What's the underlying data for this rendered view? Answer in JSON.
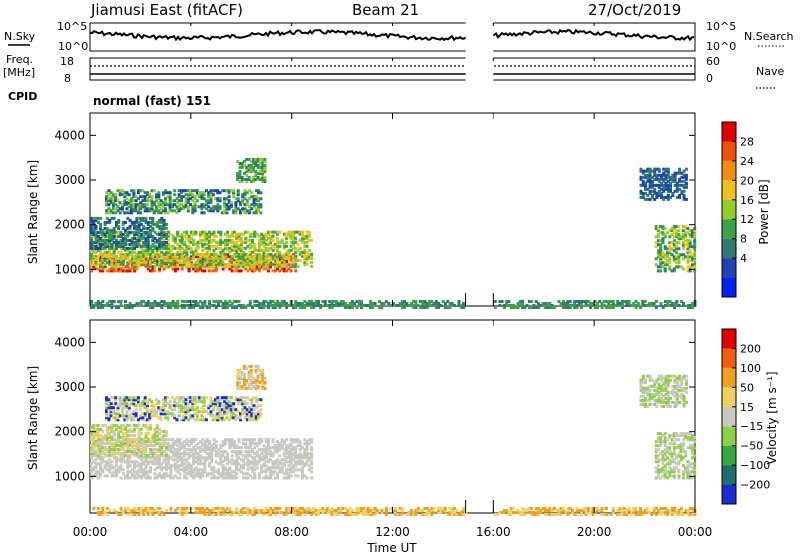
{
  "header": {
    "station": "Jiamusi East (fitACF)",
    "beam": "Beam 21",
    "date": "27/Oct/2019"
  },
  "status_panels": {
    "nsky_label": "N.Sky",
    "nsky_ticks": [
      "10^5",
      "10^0"
    ],
    "nsearch_label": "N.Search",
    "nsearch_ticks": [
      "10^5",
      "10^0"
    ],
    "freq_label": "Freq.",
    "freq_unit": "[MHz]",
    "freq_ticks": [
      "18",
      "8"
    ],
    "nave_label": "Nave",
    "nave_ticks": [
      "60",
      "0"
    ],
    "cpid_label": "CPID",
    "cpid_text": "normal (fast) 151",
    "data_gap_hours": [
      14.9,
      16.0
    ]
  },
  "chart_data": [
    {
      "type": "heatmap",
      "name": "power",
      "ylabel": "Slant Range [km]",
      "ylim": [
        180,
        4500
      ],
      "yticks": [
        1000,
        2000,
        3000,
        4000
      ],
      "colorbar_label": "Power [dB]",
      "colorbar_ticks": [
        "28",
        "24",
        "20",
        "16",
        "12",
        "8",
        "4"
      ],
      "colors": [
        "#0022ee",
        "#1e44b0",
        "#2f7a6e",
        "#3aa24a",
        "#8fce2e",
        "#f0c020",
        "#f08c10",
        "#f05008",
        "#e00000"
      ],
      "bands": [
        {
          "t": [
            0.0,
            8.1
          ],
          "r": [
            1000,
            1400
          ],
          "levels": [
            6,
            7,
            8
          ]
        },
        {
          "t": [
            0.0,
            8.8
          ],
          "r": [
            1100,
            1900
          ],
          "levels": [
            3,
            4,
            5
          ]
        },
        {
          "t": [
            0.0,
            3.0
          ],
          "r": [
            1500,
            2200
          ],
          "levels": [
            1,
            2,
            3
          ]
        },
        {
          "t": [
            0.6,
            6.8
          ],
          "r": [
            2300,
            2800
          ],
          "levels": [
            1,
            2,
            3,
            4
          ]
        },
        {
          "t": [
            5.8,
            6.9
          ],
          "r": [
            3000,
            3500
          ],
          "levels": [
            2,
            3,
            4
          ]
        },
        {
          "t": [
            22.4,
            24.0
          ],
          "r": [
            1000,
            2000
          ],
          "levels": [
            2,
            3,
            4,
            5
          ]
        },
        {
          "t": [
            21.8,
            23.6
          ],
          "r": [
            2600,
            3300
          ],
          "levels": [
            1,
            2
          ]
        },
        {
          "t": [
            0.0,
            24.0
          ],
          "r": [
            180,
            350
          ],
          "levels": [
            2,
            3
          ]
        }
      ]
    },
    {
      "type": "heatmap",
      "name": "velocity",
      "ylabel": "Slant Range [km]",
      "ylim": [
        180,
        4500
      ],
      "yticks": [
        1000,
        2000,
        3000,
        4000
      ],
      "colorbar_label": "Velocity [m s⁻¹]",
      "colorbar_ticks": [
        "200",
        "100",
        "50",
        "15",
        "−15",
        "−50",
        "−100",
        "−200"
      ],
      "colors": [
        "#1a2bd6",
        "#1e6e6e",
        "#3aa83a",
        "#8fd048",
        "#c8c8c0",
        "#f0d060",
        "#f0a020",
        "#f06010",
        "#e00000"
      ],
      "bands": [
        {
          "t": [
            0.0,
            8.8
          ],
          "r": [
            1000,
            1900
          ],
          "levels": [
            4
          ]
        },
        {
          "t": [
            0.0,
            3.0
          ],
          "r": [
            1500,
            2200
          ],
          "levels": [
            4,
            3,
            5
          ]
        },
        {
          "t": [
            0.6,
            6.8
          ],
          "r": [
            2300,
            2800
          ],
          "levels": [
            4,
            5,
            3,
            0
          ]
        },
        {
          "t": [
            5.8,
            6.9
          ],
          "r": [
            3000,
            3500
          ],
          "levels": [
            5,
            6,
            4
          ]
        },
        {
          "t": [
            22.4,
            24.0
          ],
          "r": [
            1000,
            2000
          ],
          "levels": [
            4,
            3
          ]
        },
        {
          "t": [
            21.8,
            23.6
          ],
          "r": [
            2600,
            3300
          ],
          "levels": [
            4,
            3
          ]
        },
        {
          "t": [
            0.0,
            24.0
          ],
          "r": [
            180,
            350
          ],
          "levels": [
            5,
            6
          ]
        }
      ]
    }
  ],
  "x_axis": {
    "label": "Time UT",
    "ticks": [
      "00:00",
      "04:00",
      "08:00",
      "12:00",
      "16:00",
      "20:00",
      "00:00"
    ],
    "range_hours": [
      0,
      24
    ]
  }
}
